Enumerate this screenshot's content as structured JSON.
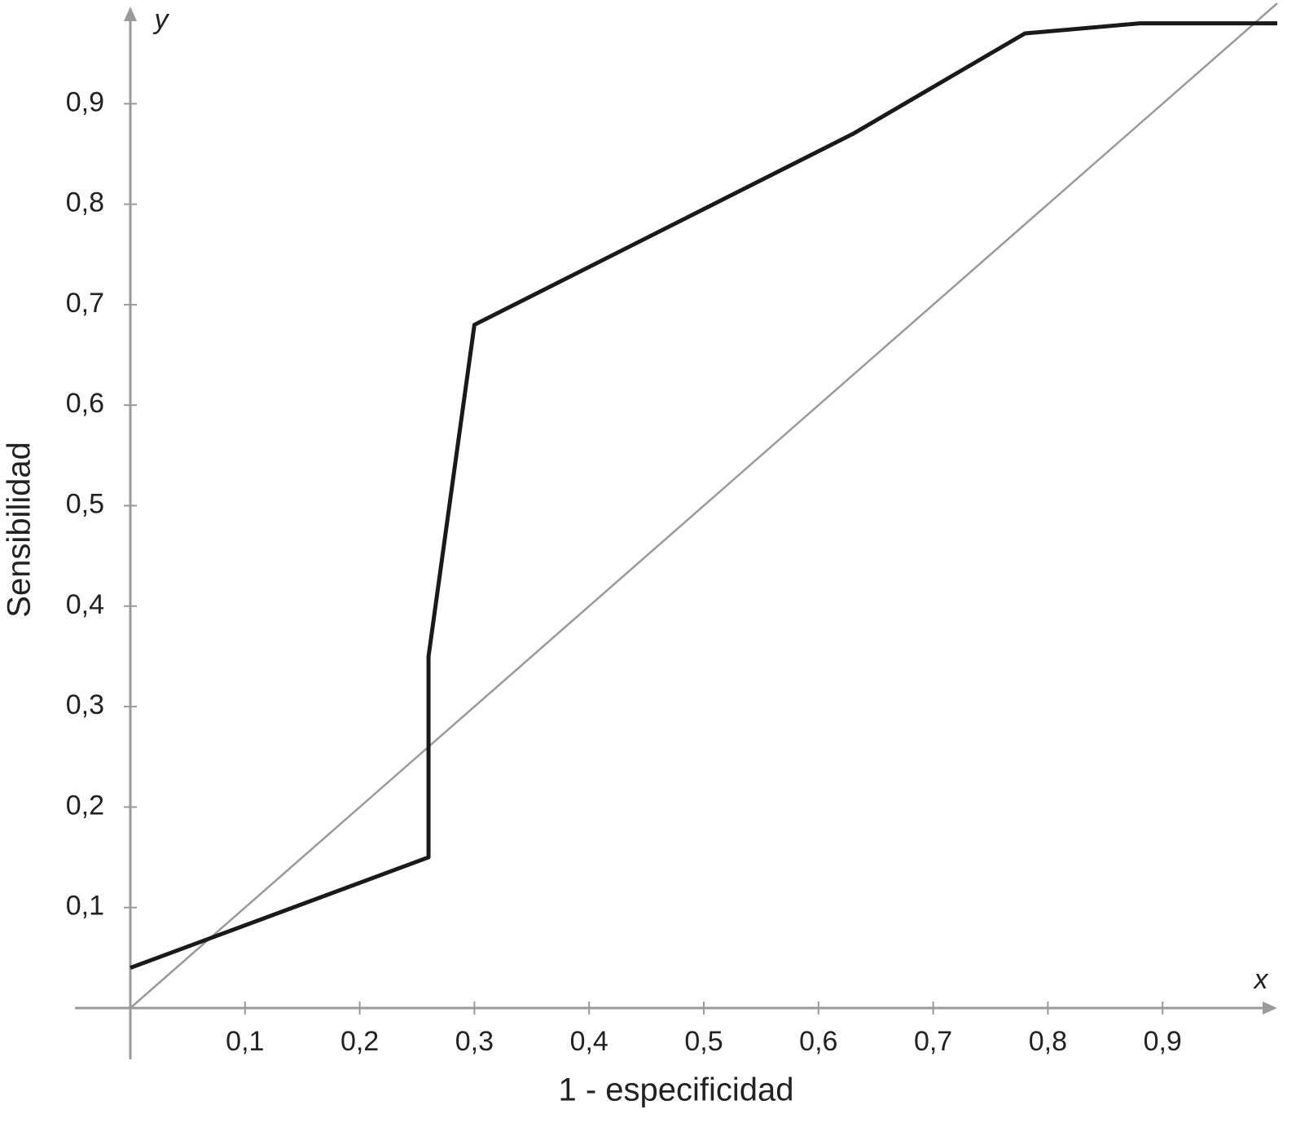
{
  "chart_data": {
    "type": "line",
    "x_label": "1 - especificidad",
    "y_label": "Sensibilidad",
    "x_axis_name": "x",
    "y_axis_name": "y",
    "series": [
      {
        "color": "#1a1a1a",
        "x": [
          0,
          0.26,
          0.26,
          0.3,
          0.63,
          0.78,
          0.88,
          1
        ],
        "values": [
          0.04,
          0.15,
          0.35,
          0.68,
          0.87,
          0.97,
          0.98,
          0.98
        ]
      },
      {
        "color": "#9a9a9a",
        "x": [
          0,
          1
        ],
        "values": [
          0,
          1
        ]
      }
    ],
    "xlim": [
      0,
      1
    ],
    "ylim": [
      0,
      1
    ],
    "xticks": [
      {
        "value": 0.1,
        "label": "0,1"
      },
      {
        "value": 0.2,
        "label": "0,2"
      },
      {
        "value": 0.3,
        "label": "0,3"
      },
      {
        "value": 0.4,
        "label": "0,4"
      },
      {
        "value": 0.5,
        "label": "0,5"
      },
      {
        "value": 0.6,
        "label": "0,6"
      },
      {
        "value": 0.7,
        "label": "0,7"
      },
      {
        "value": 0.8,
        "label": "0,8"
      },
      {
        "value": 0.9,
        "label": "0,9"
      }
    ],
    "yticks": [
      {
        "value": 0.1,
        "label": "0,1"
      },
      {
        "value": 0.2,
        "label": "0,2"
      },
      {
        "value": 0.3,
        "label": "0,3"
      },
      {
        "value": 0.4,
        "label": "0,4"
      },
      {
        "value": 0.5,
        "label": "0,5"
      },
      {
        "value": 0.6,
        "label": "0,6"
      },
      {
        "value": 0.7,
        "label": "0,7"
      },
      {
        "value": 0.8,
        "label": "0,8"
      },
      {
        "value": 0.9,
        "label": "0,9"
      }
    ]
  }
}
